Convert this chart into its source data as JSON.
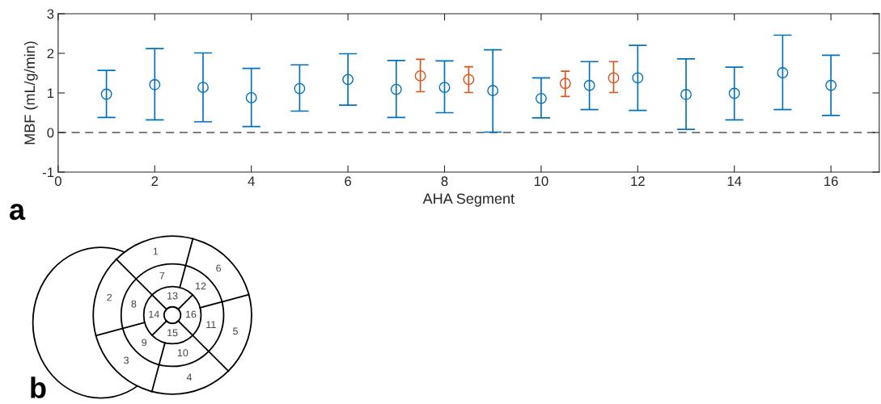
{
  "chart_data": [
    {
      "type": "scatter",
      "xlabel": "AHA Segment",
      "ylabel": "MBF (mL/g/min)",
      "xlim": [
        0,
        17
      ],
      "ylim": [
        -1,
        3
      ],
      "xticks": [
        0,
        2,
        4,
        6,
        8,
        10,
        12,
        14,
        16
      ],
      "yticks": [
        -1,
        0,
        1,
        2,
        3
      ],
      "marker": "circle",
      "series": [
        {
          "color": "#0072bd",
          "x": [
            1,
            2,
            3,
            4,
            5,
            6,
            7,
            8,
            9,
            10,
            11,
            12,
            13,
            14,
            15,
            16
          ],
          "values": [
            0.97,
            1.21,
            1.14,
            0.88,
            1.11,
            1.34,
            1.09,
            1.14,
            1.06,
            0.86,
            1.19,
            1.38,
            0.96,
            0.99,
            1.51,
            1.19
          ],
          "errors": [
            [
              0.38,
              1.57
            ],
            [
              0.32,
              2.12
            ],
            [
              0.27,
              2.01
            ],
            [
              0.15,
              1.62
            ],
            [
              0.54,
              1.71
            ],
            [
              0.69,
              1.99
            ],
            [
              0.38,
              1.82
            ],
            [
              0.5,
              1.81
            ],
            [
              0.01,
              2.09
            ],
            [
              0.37,
              1.38
            ],
            [
              0.58,
              1.79
            ],
            [
              0.56,
              2.2
            ],
            [
              0.08,
              1.86
            ],
            [
              0.32,
              1.65
            ],
            [
              0.58,
              2.46
            ],
            [
              0.43,
              1.95
            ]
          ]
        },
        {
          "color": "#d95319",
          "x": [
            7.5,
            8.5,
            10.5,
            11.5
          ],
          "values": [
            1.43,
            1.34,
            1.24,
            1.38
          ],
          "errors": [
            [
              1.03,
              1.85
            ],
            [
              1.01,
              1.66
            ],
            [
              0.91,
              1.55
            ],
            [
              1.01,
              1.79
            ]
          ]
        }
      ],
      "ref_lines": [
        {
          "axis": "y",
          "value": 0,
          "color": "#555555",
          "line_style": "dashed"
        }
      ],
      "annotations": [
        "a"
      ]
    },
    {
      "type": "other",
      "annotations": [
        "1",
        "2",
        "3",
        "4",
        "5",
        "6",
        "7",
        "8",
        "9",
        "10",
        "11",
        "12",
        "13",
        "14",
        "15",
        "16",
        "b"
      ]
    }
  ]
}
